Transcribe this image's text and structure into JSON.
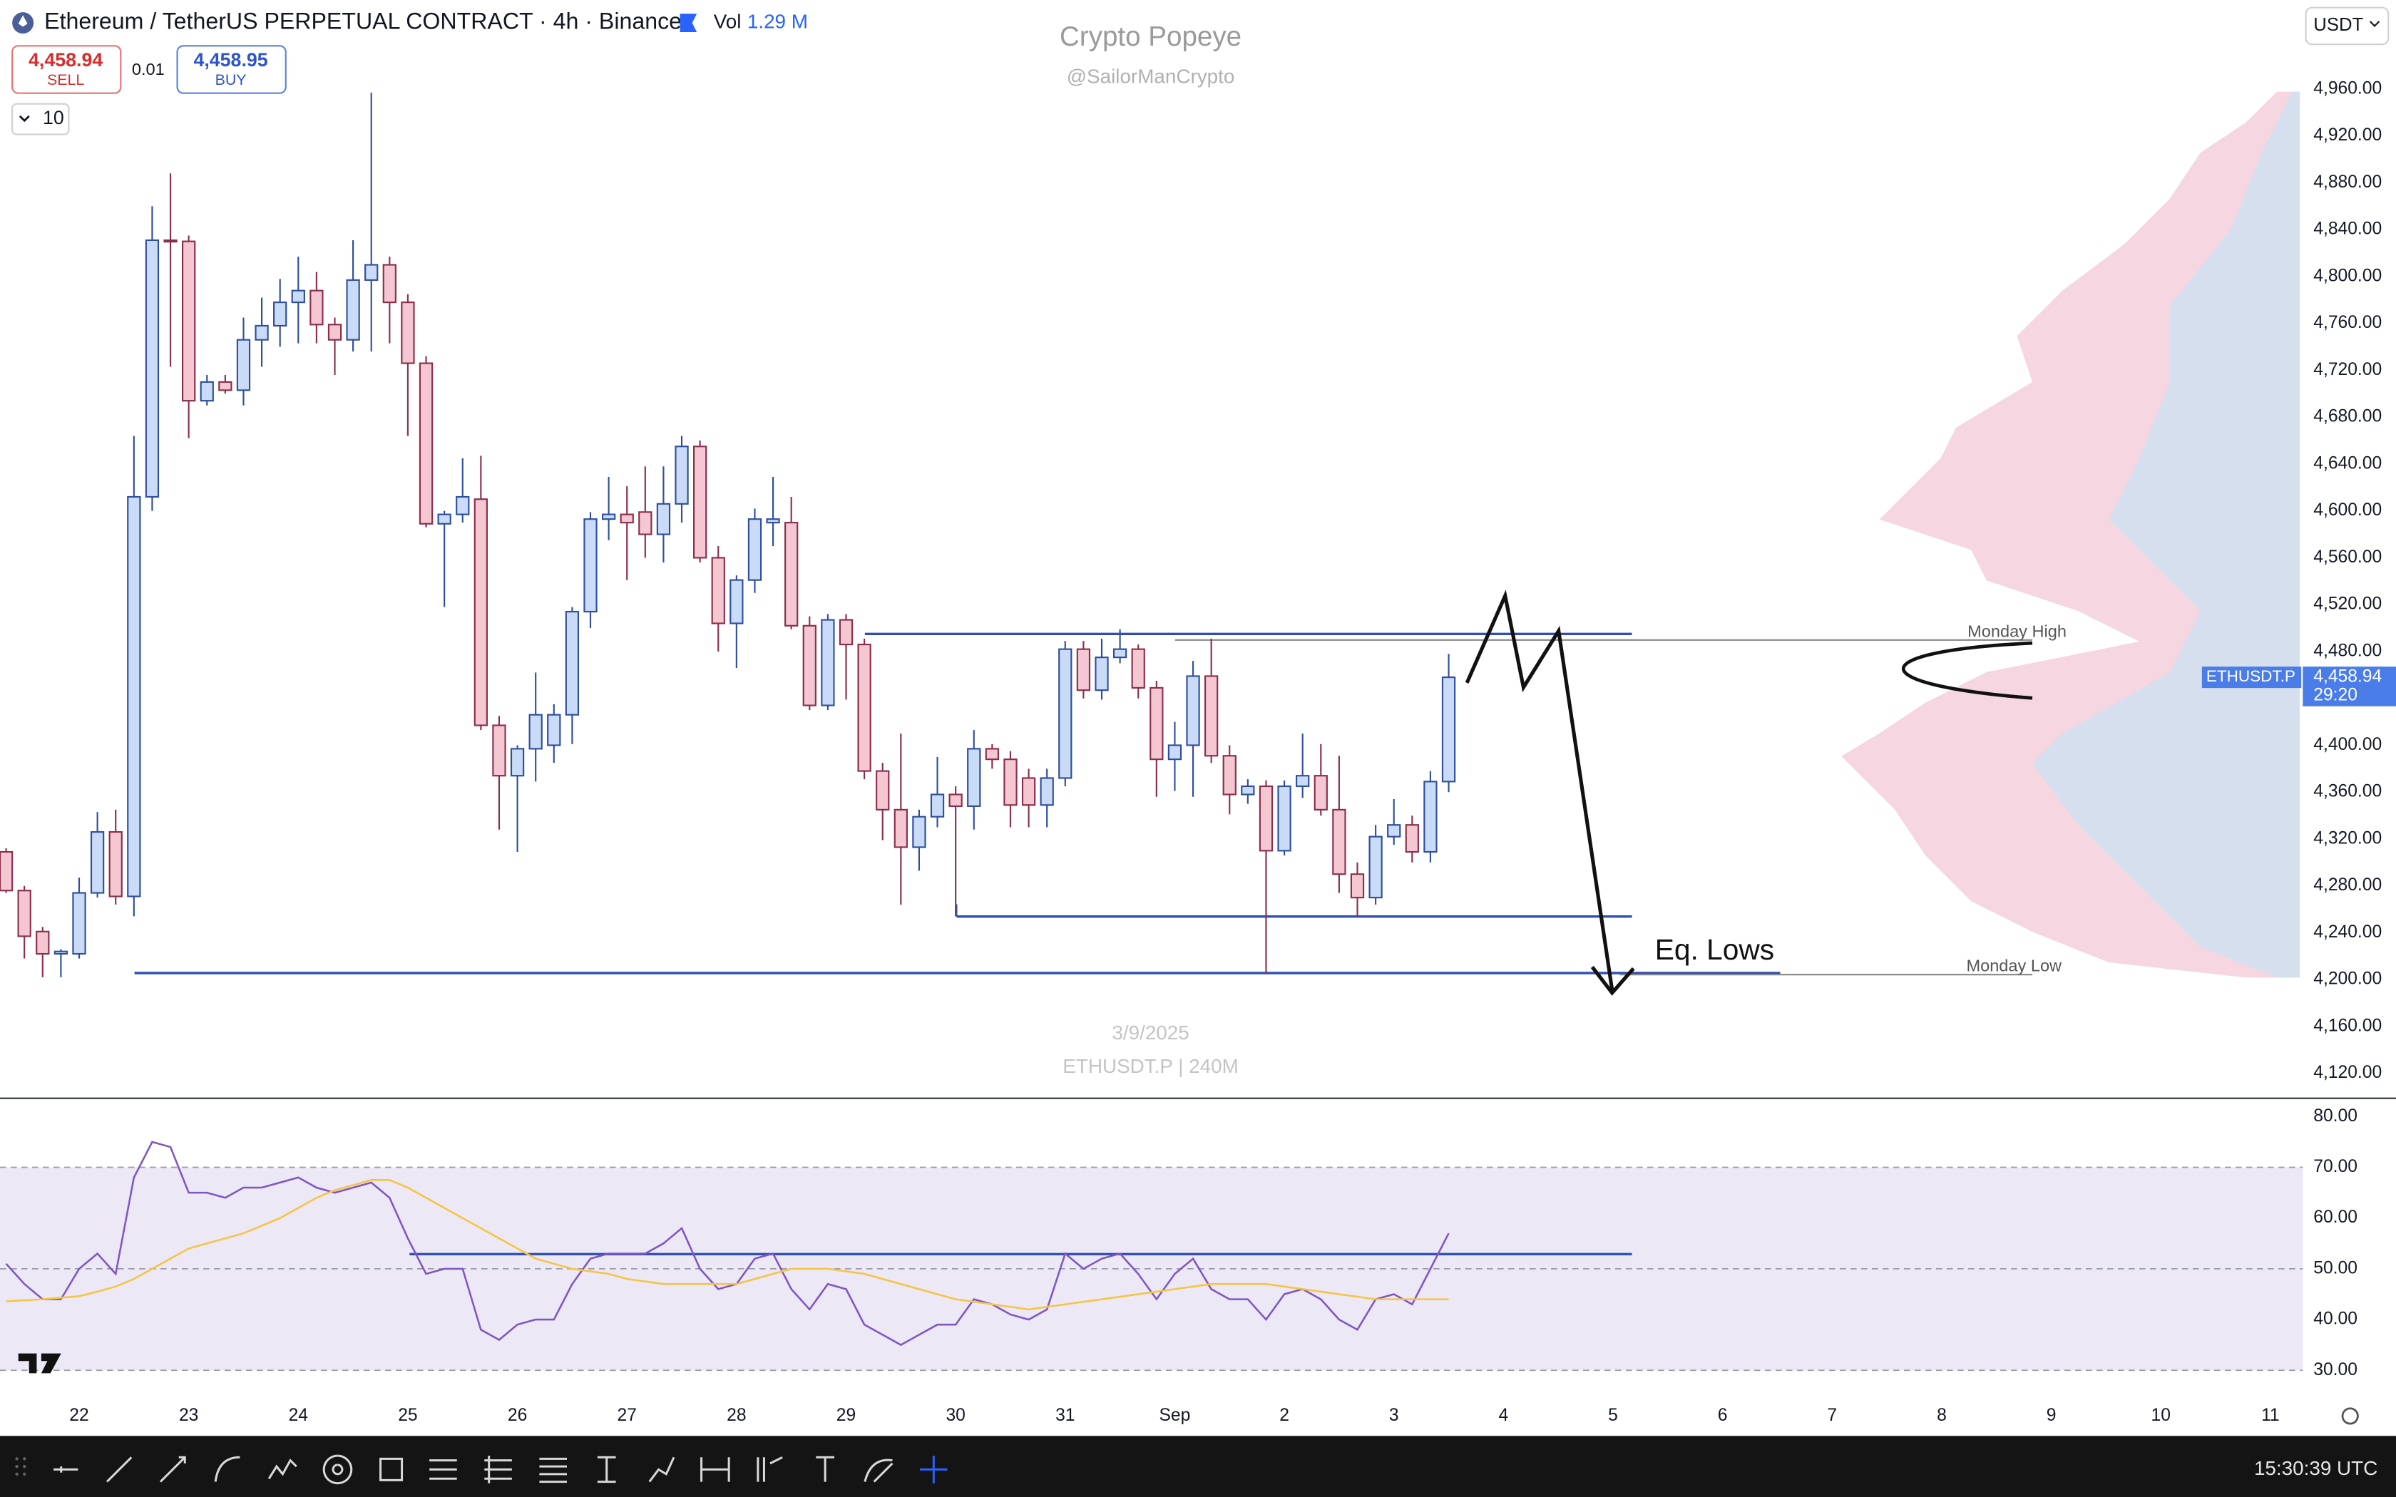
{
  "header": {
    "symbol": "Ethereum / TetherUS PERPETUAL CONTRACT · 4h · Binance",
    "vol_label": "Vol",
    "vol_value": "1.29 M",
    "sell_price": "4,458.94",
    "sell_label": "SELL",
    "quantity": "0.01",
    "buy_price": "4,458.95",
    "buy_label": "BUY",
    "indicator_count": "10",
    "currency": "USDT"
  },
  "watermark": {
    "author": "Crypto Popeye",
    "handle": "@SailorManCrypto",
    "date": "3/9/2025",
    "symbol_interval": "ETHUSDT.P | 240M"
  },
  "chart_data": [
    {
      "type": "candlestick",
      "open": [
        4309,
        4276,
        4241,
        4222,
        4222,
        4274,
        4326,
        4271,
        4612,
        4831,
        4830,
        4694,
        4710,
        4703,
        4746,
        4758,
        4778,
        4788,
        4759,
        4746,
        4797,
        4810,
        4778,
        4726,
        4589,
        4597,
        4610,
        4417,
        4374,
        4397,
        4400,
        4426,
        4514,
        4593,
        4597,
        4599,
        4580,
        4606,
        4655,
        4560,
        4504,
        4541,
        4590,
        4590,
        4502,
        4434,
        4507,
        4486,
        4378,
        4345,
        4313,
        4339,
        4358,
        4348,
        4397,
        4388,
        4372,
        4349,
        4372,
        4482,
        4447,
        4475,
        4482,
        4449,
        4388,
        4400,
        4459,
        4391,
        4358,
        4365,
        4310,
        4365,
        4374,
        4345,
        4290,
        4270,
        4322,
        4332,
        4309,
        4369
      ],
      "high": [
        4312,
        4280,
        4245,
        4226,
        4287,
        4343,
        4345,
        4664,
        4860,
        4888,
        4835,
        4716,
        4716,
        4765,
        4782,
        4798,
        4817,
        4804,
        4765,
        4831,
        4957,
        4817,
        4785,
        4732,
        4600,
        4645,
        4647,
        4425,
        4400,
        4462,
        4435,
        4518,
        4599,
        4629,
        4621,
        4638,
        4638,
        4664,
        4660,
        4570,
        4545,
        4602,
        4629,
        4612,
        4510,
        4512,
        4512,
        4491,
        4385,
        4410,
        4345,
        4390,
        4365,
        4413,
        4401,
        4395,
        4380,
        4380,
        4489,
        4489,
        4491,
        4499,
        4486,
        4455,
        4420,
        4472,
        4491,
        4400,
        4371,
        4370,
        4370,
        4410,
        4401,
        4391,
        4300,
        4332,
        4354,
        4340,
        4378,
        4478
      ],
      "low": [
        4274,
        4218,
        4202,
        4202,
        4218,
        4270,
        4264,
        4254,
        4600,
        4723,
        4662,
        4690,
        4700,
        4690,
        4723,
        4740,
        4743,
        4743,
        4716,
        4736,
        4736,
        4743,
        4664,
        4586,
        4518,
        4590,
        4413,
        4328,
        4309,
        4369,
        4385,
        4401,
        4500,
        4575,
        4541,
        4560,
        4556,
        4590,
        4556,
        4480,
        4466,
        4530,
        4570,
        4499,
        4430,
        4430,
        4439,
        4371,
        4319,
        4264,
        4293,
        4330,
        4254,
        4328,
        4380,
        4330,
        4330,
        4330,
        4365,
        4440,
        4439,
        4470,
        4440,
        4356,
        4361,
        4356,
        4385,
        4341,
        4350,
        4205,
        4306,
        4355,
        4340,
        4274,
        4254,
        4264,
        4315,
        4300,
        4300,
        4360
      ],
      "close": [
        4276,
        4237,
        4222,
        4224,
        4274,
        4326,
        4271,
        4612,
        4831,
        4830,
        4694,
        4710,
        4703,
        4746,
        4758,
        4778,
        4788,
        4759,
        4746,
        4797,
        4810,
        4778,
        4726,
        4589,
        4597,
        4612,
        4417,
        4374,
        4397,
        4426,
        4426,
        4514,
        4593,
        4597,
        4590,
        4580,
        4606,
        4655,
        4560,
        4504,
        4541,
        4593,
        4593,
        4502,
        4434,
        4507,
        4486,
        4378,
        4345,
        4313,
        4339,
        4358,
        4348,
        4397,
        4388,
        4349,
        4349,
        4372,
        4482,
        4447,
        4475,
        4482,
        4449,
        4388,
        4400,
        4459,
        4391,
        4358,
        4365,
        4310,
        4365,
        4374,
        4345,
        4290,
        4270,
        4322,
        4332,
        4309,
        4369,
        4458
      ],
      "up_color": "#c9dbf7",
      "up_border": "#2f4f9c",
      "down_color": "#f4c7d3",
      "down_border": "#8a2f4a",
      "ylim": [
        4100,
        5036
      ],
      "yticks": [
        {
          "value": 4120,
          "label": "4,120.00"
        },
        {
          "value": 4160,
          "label": "4,160.00"
        },
        {
          "value": 4200,
          "label": "4,200.00"
        },
        {
          "value": 4240,
          "label": "4,240.00"
        },
        {
          "value": 4280,
          "label": "4,280.00"
        },
        {
          "value": 4320,
          "label": "4,320.00"
        },
        {
          "value": 4360,
          "label": "4,360.00"
        },
        {
          "value": 4400,
          "label": "4,400.00"
        },
        {
          "value": 4480,
          "label": "4,480.00"
        },
        {
          "value": 4520,
          "label": "4,520.00"
        },
        {
          "value": 4560,
          "label": "4,560.00"
        },
        {
          "value": 4600,
          "label": "4,600.00"
        },
        {
          "value": 4640,
          "label": "4,640.00"
        },
        {
          "value": 4680,
          "label": "4,680.00"
        },
        {
          "value": 4720,
          "label": "4,720.00"
        },
        {
          "value": 4760,
          "label": "4,760.00"
        },
        {
          "value": 4800,
          "label": "4,800.00"
        },
        {
          "value": 4840,
          "label": "4,840.00"
        },
        {
          "value": 4880,
          "label": "4,880.00"
        },
        {
          "value": 4920,
          "label": "4,920.00"
        },
        {
          "value": 4960,
          "label": "4,960.00"
        }
      ],
      "x_axis_labels": [
        "22",
        "23",
        "24",
        "25",
        "26",
        "27",
        "28",
        "29",
        "30",
        "31",
        "Sep",
        "2",
        "3",
        "4",
        "5",
        "6",
        "7",
        "8",
        "9",
        "10",
        "11"
      ],
      "annotations": {
        "monday_high": "Monday High",
        "monday_low": "Monday Low",
        "eq_lows": "Eq. Lows"
      },
      "last_price_tag": {
        "symbol": "ETHUSDT.P",
        "price": "4,458.94",
        "countdown": "29:20",
        "color": "#4a7de8"
      }
    },
    {
      "type": "line",
      "series": [
        {
          "color": "#7e57c2",
          "values": [
            51,
            47,
            44,
            44,
            50,
            53,
            49,
            68,
            75,
            74,
            65,
            65,
            64,
            66,
            66,
            67,
            68,
            66,
            65,
            66,
            67,
            64,
            56,
            49,
            50,
            50,
            38,
            36,
            39,
            40,
            40,
            47,
            52,
            53,
            53,
            53,
            55,
            58,
            50,
            46,
            47,
            52,
            53,
            46,
            42,
            47,
            46,
            39,
            37,
            35,
            37,
            39,
            39,
            44,
            43,
            41,
            40,
            42,
            53,
            50,
            52,
            53,
            49,
            44,
            49,
            52,
            46,
            44,
            44,
            40,
            45,
            46,
            44,
            40,
            38,
            44,
            45,
            43,
            50,
            57
          ]
        },
        {
          "color": "#f5c542",
          "values": [
            43.6,
            43.8,
            44,
            44.3,
            44.6,
            45.5,
            46.5,
            48,
            50,
            52,
            54,
            55,
            56,
            57,
            58.5,
            60,
            62,
            64,
            65.5,
            66.5,
            67.5,
            67.5,
            66,
            64,
            62,
            60,
            58,
            56,
            54,
            52,
            51,
            50,
            49.5,
            49,
            48,
            47.5,
            47,
            47,
            47,
            47,
            47,
            48,
            49,
            50,
            50,
            50,
            49.5,
            49,
            48,
            47,
            46,
            45,
            44,
            43.5,
            43,
            42.5,
            42,
            42.5,
            43,
            43.5,
            44,
            44.5,
            45,
            45.5,
            46,
            46.5,
            47,
            47,
            47,
            47,
            46.5,
            46,
            45.5,
            45,
            44.5,
            44,
            44,
            44,
            44,
            44
          ]
        }
      ],
      "levels": [
        70,
        50,
        30
      ],
      "ylim": [
        25.5,
        83.3
      ],
      "yticks": [
        {
          "value": 30,
          "label": "30.00"
        },
        {
          "value": 40,
          "label": "40.00"
        },
        {
          "value": 50,
          "label": "50.00"
        },
        {
          "value": 60,
          "label": "60.00"
        },
        {
          "value": 70,
          "label": "70.00"
        },
        {
          "value": 80,
          "label": "80.00"
        }
      ]
    }
  ],
  "footer": {
    "time": "15:30:39 UTC"
  }
}
